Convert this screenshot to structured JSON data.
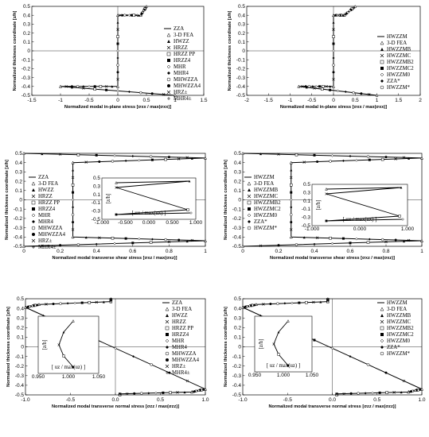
{
  "chart_data": [
    {
      "type": "line",
      "xlabel": "Normalized modal in-plane stress  [σxx / max(σxx)]",
      "ylabel": "Normalized thickness coordinate [z/h]",
      "xlim": [
        -1.5,
        1.5
      ],
      "ylim": [
        -0.5,
        0.5
      ],
      "xticks": [
        "-1.5",
        "-1",
        "-0.5",
        "0",
        "0.5",
        "1",
        "1.5"
      ],
      "yticks": [
        "-0.5",
        "-0.4",
        "-0.3",
        "-0.2",
        "-0.1",
        "0",
        "0.1",
        "0.2",
        "0.3",
        "0.4",
        "0.5"
      ],
      "legend": [
        "ZZA",
        "3-D FEA",
        "HWZZ",
        "HRZZ",
        "HRZZ PP",
        "HRZZ4",
        "MHR",
        "MHR4",
        "MHWZZA",
        "MHWZZA4",
        "HRZ±",
        "MHR4±"
      ],
      "legend_position": "right",
      "curve": [
        [
          0.5,
          0.5
        ],
        [
          0.4,
          0.4
        ],
        [
          0.0,
          0.4
        ],
        [
          0.0,
          -0.4
        ],
        [
          -1.0,
          -0.4
        ],
        [
          1.0,
          -0.5
        ]
      ],
      "grid": false
    },
    {
      "type": "line",
      "xlabel": "Normalized modal in-plane stress  [σxx / max(σxx)]",
      "ylabel": "Normalized thickness coordinate [z/h]",
      "xlim": [
        -2.0,
        2.0
      ],
      "ylim": [
        -0.5,
        0.5
      ],
      "xticks": [
        "-2",
        "-1.5",
        "-1",
        "-0.5",
        "0",
        "0.5",
        "1",
        "1.5",
        "2"
      ],
      "yticks": [
        "-0.5",
        "-0.4",
        "-0.3",
        "-0.2",
        "-0.1",
        "0",
        "0.1",
        "0.2",
        "0.3",
        "0.4",
        "0.5"
      ],
      "legend": [
        "HWZZM",
        "3-D FEA",
        "HWZZMB",
        "HWZZMC",
        "HWZZMB2",
        "HWZZMC2",
        "HWZZM0",
        "ZZA*",
        "HWZZM*"
      ],
      "legend_position": "right",
      "curve": [
        [
          0.5,
          0.5
        ],
        [
          0.25,
          0.4
        ],
        [
          0.0,
          0.4
        ],
        [
          0.0,
          -0.4
        ],
        [
          -0.8,
          -0.4
        ],
        [
          1.0,
          -0.5
        ]
      ],
      "grid": false
    },
    {
      "type": "line",
      "xlabel": "Normalized modal transverse shear stress [σxz / max(σxz)]",
      "ylabel": "Normalized thickness coordinate [z/h]",
      "xlim": [
        0,
        1
      ],
      "ylim": [
        -0.5,
        0.5
      ],
      "xticks": [
        "0",
        "0.2",
        "0.4",
        "0.6",
        "0.8",
        "1"
      ],
      "yticks": [
        "-0.5",
        "-0.4",
        "-0.3",
        "-0.2",
        "-0.1",
        "0",
        "0.1",
        "0.2",
        "0.3",
        "0.4",
        "0.5"
      ],
      "legend": [
        "ZZA",
        "3-D FEA",
        "HWZZ",
        "HRZZ",
        "HRZZ PP",
        "HRZZ4",
        "MHR",
        "MHR4",
        "MHWZZA",
        "MHWZZA4",
        "HRZ±",
        "MHR4±"
      ],
      "legend_position": "left",
      "curve": [
        [
          0.0,
          0.5
        ],
        [
          1.0,
          0.45
        ],
        [
          0.27,
          0.4
        ],
        [
          0.27,
          -0.4
        ],
        [
          1.0,
          -0.44
        ],
        [
          0.0,
          -0.5
        ]
      ],
      "inset": {
        "xlabel": "[ ux / max(ux) ]",
        "ylabel": "[z/h]",
        "xticks": [
          "-1.000",
          "-0.500",
          "0.000",
          "0.500",
          "1.000"
        ],
        "yticks": [
          "0.5",
          "0.3",
          "0.1",
          "-0.1",
          "-0.3",
          "-0.5"
        ]
      },
      "grid": false
    },
    {
      "type": "line",
      "xlabel": "Normalized modal transverse shear stress [σxz / max(σxz)]",
      "ylabel": "Normalized thickness coordinate [z/h]",
      "xlim": [
        0,
        1
      ],
      "ylim": [
        -0.5,
        0.5
      ],
      "xticks": [
        "0",
        "0.2",
        "0.4",
        "0.6",
        "0.8",
        "1"
      ],
      "yticks": [
        "-0.5",
        "-0.4",
        "-0.3",
        "-0.2",
        "-0.1",
        "0",
        "0.1",
        "0.2",
        "0.3",
        "0.4",
        "0.5"
      ],
      "legend": [
        "HWZZM",
        "3-D FEA",
        "HWZZMB",
        "HWZZMC",
        "HWZZMB2",
        "HWZZMC2",
        "HWZZM0",
        "ZZA*",
        "HWZZM*"
      ],
      "legend_position": "left",
      "curve": [
        [
          0.0,
          0.5
        ],
        [
          1.0,
          0.45
        ],
        [
          0.27,
          0.4
        ],
        [
          0.27,
          -0.4
        ],
        [
          1.0,
          -0.44
        ],
        [
          0.0,
          -0.5
        ]
      ],
      "inset": {
        "xlabel": "[ ux / max(ux) ]",
        "ylabel": "[z/h]",
        "xticks": [
          "-1.000",
          "0.000",
          "1.000"
        ],
        "yticks": [
          "0.5",
          "0.3",
          "0.1",
          "-0.1",
          "-0.3",
          "-0.5"
        ]
      },
      "grid": false
    },
    {
      "type": "line",
      "xlabel": "Normalized modal transverse normal stress [σzz / max(σzz)]",
      "ylabel": "Normalized thickness coordinate [z/h]",
      "xlim": [
        -1.0,
        1.0
      ],
      "ylim": [
        -0.5,
        0.5
      ],
      "xticks": [
        "-1.0",
        "-0.5",
        "0.0",
        "0.5",
        "1.0"
      ],
      "yticks": [
        "-0.5",
        "-0.4",
        "-0.3",
        "-0.2",
        "-0.1",
        "0",
        "0.1",
        "0.2",
        "0.3",
        "0.4",
        "0.5"
      ],
      "legend": [
        "ZZA",
        "3-D FEA",
        "HWZZ",
        "HRZZ",
        "HRZZ PP",
        "HRZZ4",
        "MHR",
        "MHR4",
        "MHWZZA",
        "MHWZZA4",
        "HRZ±",
        "MHR4±"
      ],
      "legend_position": "right",
      "curve": [
        [
          -0.05,
          0.5
        ],
        [
          -0.05,
          0.47
        ],
        [
          -0.85,
          0.44
        ],
        [
          -1.0,
          0.41
        ],
        [
          1.0,
          -0.44
        ],
        [
          0.85,
          -0.47
        ],
        [
          0.05,
          -0.49
        ],
        [
          0.05,
          -0.5
        ]
      ],
      "inset": {
        "xlabel": "[ uz / max(uz) ]",
        "ylabel": "[z/h]",
        "xticks": [
          "0.950",
          "1.000",
          "1.050"
        ]
      },
      "grid": false
    },
    {
      "type": "line",
      "xlabel": "Normalized modal transverse normal stress [σzz / max(σzz)]",
      "ylabel": "Normalized thickness coordinate [z/h]",
      "xlim": [
        -1.0,
        1.0
      ],
      "ylim": [
        -0.5,
        0.5
      ],
      "xticks": [
        "-1.0",
        "-0.5",
        "0.0",
        "0.5",
        "1.0"
      ],
      "yticks": [
        "-0.5",
        "-0.4",
        "-0.3",
        "-0.2",
        "-0.1",
        "0",
        "0.1",
        "0.2",
        "0.3",
        "0.4",
        "0.5"
      ],
      "legend": [
        "HWZZM",
        "3-D FEA",
        "HWZZMB",
        "HWZZMC",
        "HWZZMB2",
        "HWZZMC2",
        "HWZZM0",
        "ZZA*",
        "HWZZM*"
      ],
      "legend_position": "right",
      "curve": [
        [
          -0.05,
          0.5
        ],
        [
          -0.05,
          0.47
        ],
        [
          -0.85,
          0.44
        ],
        [
          -1.0,
          0.41
        ],
        [
          1.0,
          -0.44
        ],
        [
          0.85,
          -0.47
        ],
        [
          0.05,
          -0.49
        ],
        [
          0.05,
          -0.5
        ]
      ],
      "inset": {
        "xlabel": "[ uz / max(uz) ]",
        "ylabel": "[z/h]",
        "xticks": [
          "0.950",
          "1.000",
          "1.050"
        ]
      },
      "grid": false
    }
  ]
}
